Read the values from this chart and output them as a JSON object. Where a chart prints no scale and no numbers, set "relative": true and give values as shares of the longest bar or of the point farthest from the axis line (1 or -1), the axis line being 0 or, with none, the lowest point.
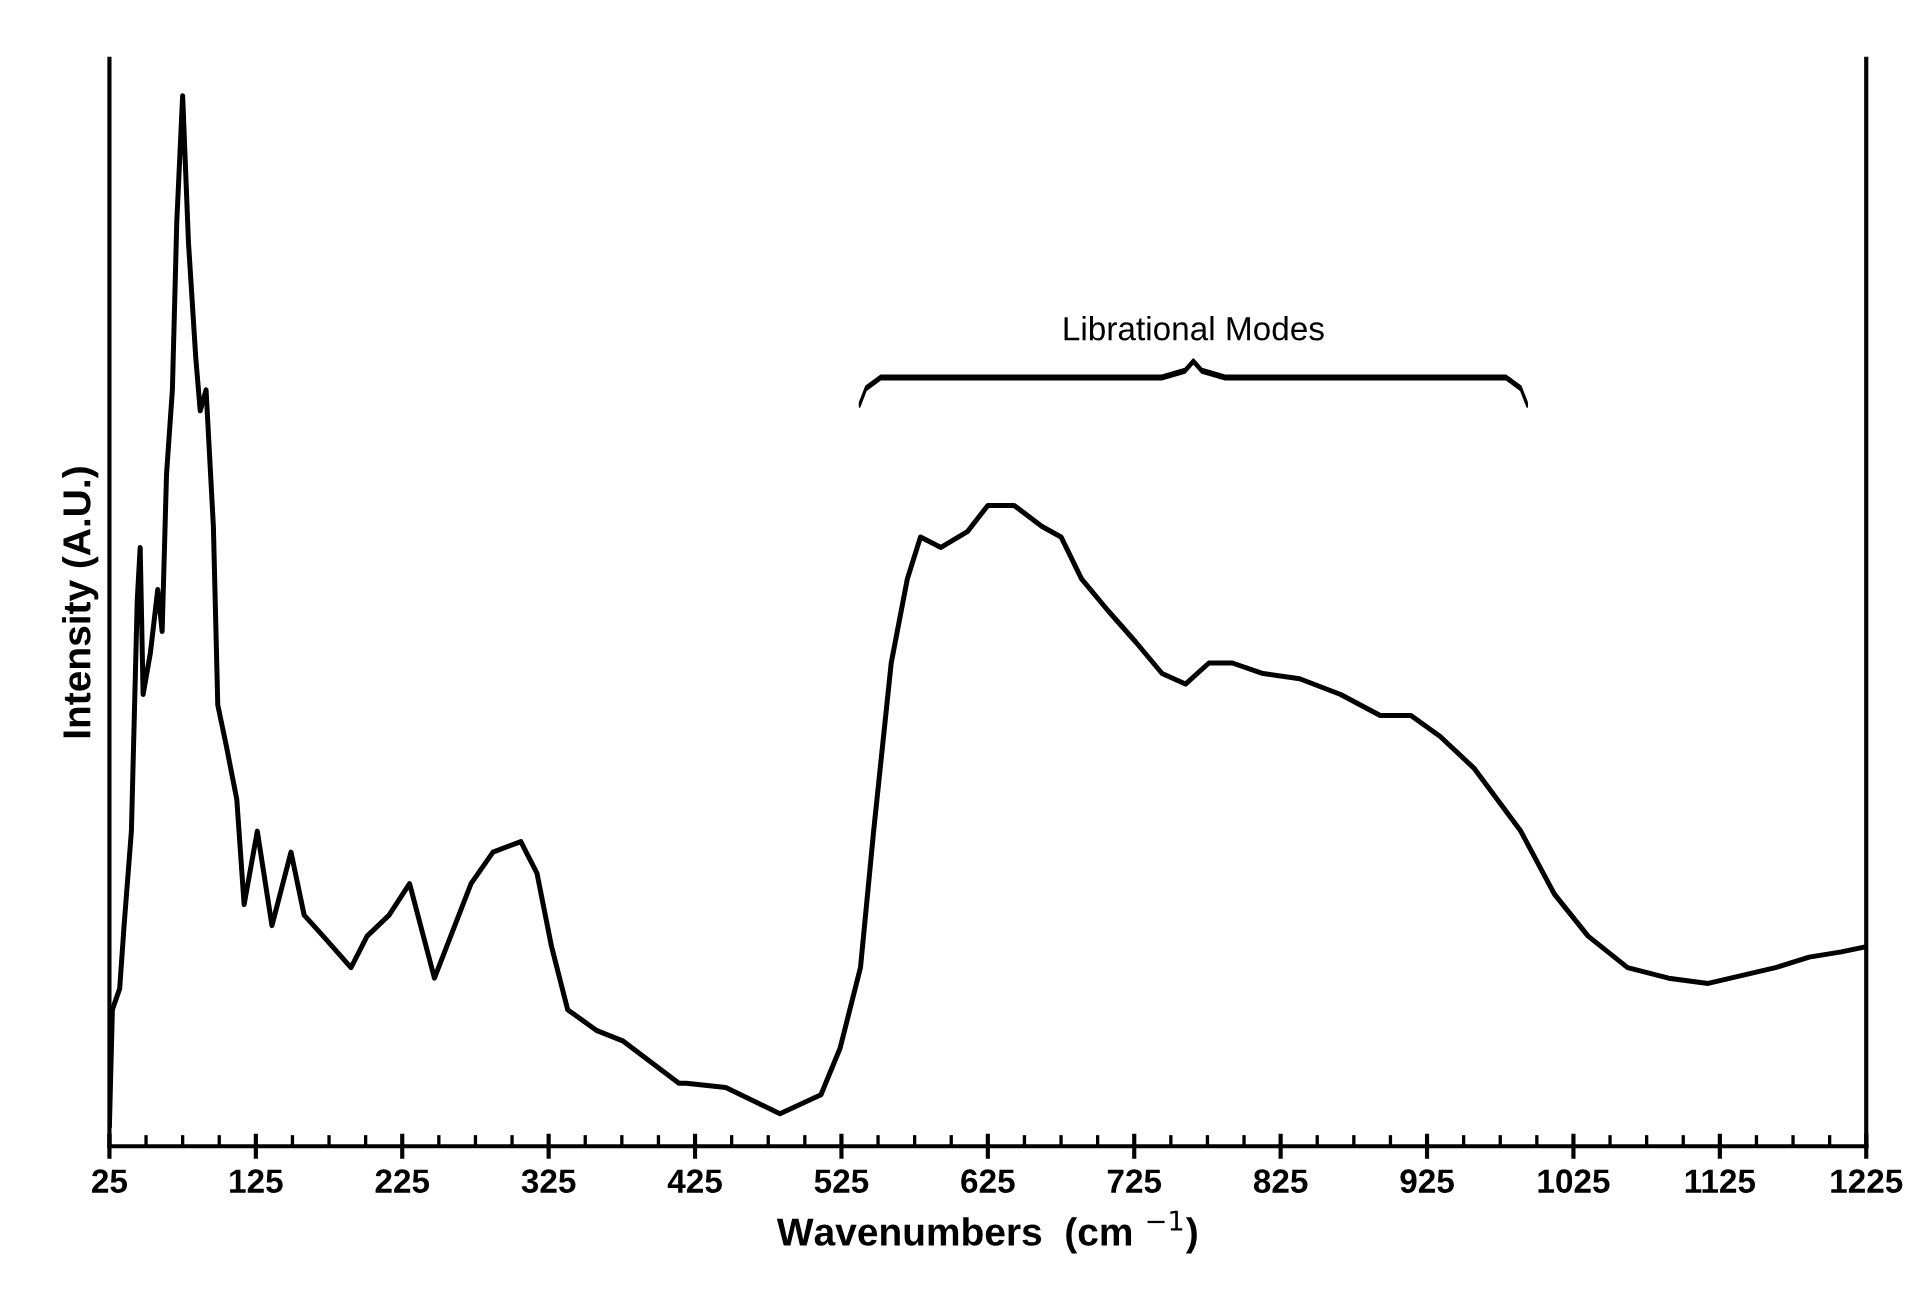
{
  "chart_data": {
    "type": "line",
    "relative": true,
    "xlabel": "Wavenumbers  (cm $^{−1}$)",
    "ylabel": "Intensity (A.U.)",
    "xlim": [
      25,
      1225
    ],
    "xticks": [
      25,
      125,
      225,
      325,
      425,
      525,
      625,
      725,
      825,
      925,
      1025,
      1125,
      1225
    ],
    "grid": false,
    "marker": "none",
    "line_style": "solid",
    "annotations": [
      "Librational Modes"
    ],
    "series": [
      {
        "color": "#000000",
        "x": [
          25,
          27,
          32,
          35,
          40,
          44,
          46,
          48,
          53,
          58,
          61,
          64,
          68,
          71,
          75,
          79,
          84,
          87,
          91,
          96,
          99,
          105,
          112,
          117,
          126,
          136,
          149,
          158,
          171,
          190,
          201,
          216,
          230,
          247,
          272,
          287,
          306,
          317,
          327,
          338,
          358,
          376,
          414,
          419,
          446,
          483,
          511,
          524,
          538,
          547,
          559,
          570,
          579,
          593,
          611,
          625,
          643,
          662,
          675,
          689,
          707,
          726,
          744,
          760,
          776,
          792,
          813,
          838,
          866,
          893,
          914,
          934,
          957,
          989,
          1012,
          1035,
          1062,
          1090,
          1117,
          1163,
          1186,
          1208,
          1225
        ],
        "values": [
          0.02,
          0.13,
          0.15,
          0.21,
          0.3,
          0.52,
          0.57,
          0.43,
          0.47,
          0.53,
          0.49,
          0.64,
          0.72,
          0.88,
          1.0,
          0.86,
          0.75,
          0.7,
          0.72,
          0.59,
          0.42,
          0.38,
          0.33,
          0.23,
          0.3,
          0.21,
          0.28,
          0.22,
          0.2,
          0.17,
          0.2,
          0.22,
          0.25,
          0.16,
          0.25,
          0.28,
          0.29,
          0.26,
          0.19,
          0.13,
          0.11,
          0.1,
          0.06,
          0.06,
          0.056,
          0.031,
          0.049,
          0.093,
          0.17,
          0.3,
          0.46,
          0.54,
          0.58,
          0.57,
          0.585,
          0.61,
          0.61,
          0.59,
          0.58,
          0.54,
          0.51,
          0.48,
          0.45,
          0.44,
          0.46,
          0.46,
          0.45,
          0.445,
          0.43,
          0.41,
          0.41,
          0.39,
          0.36,
          0.3,
          0.24,
          0.2,
          0.17,
          0.16,
          0.155,
          0.17,
          0.18,
          0.185,
          0.19
        ]
      }
    ]
  }
}
